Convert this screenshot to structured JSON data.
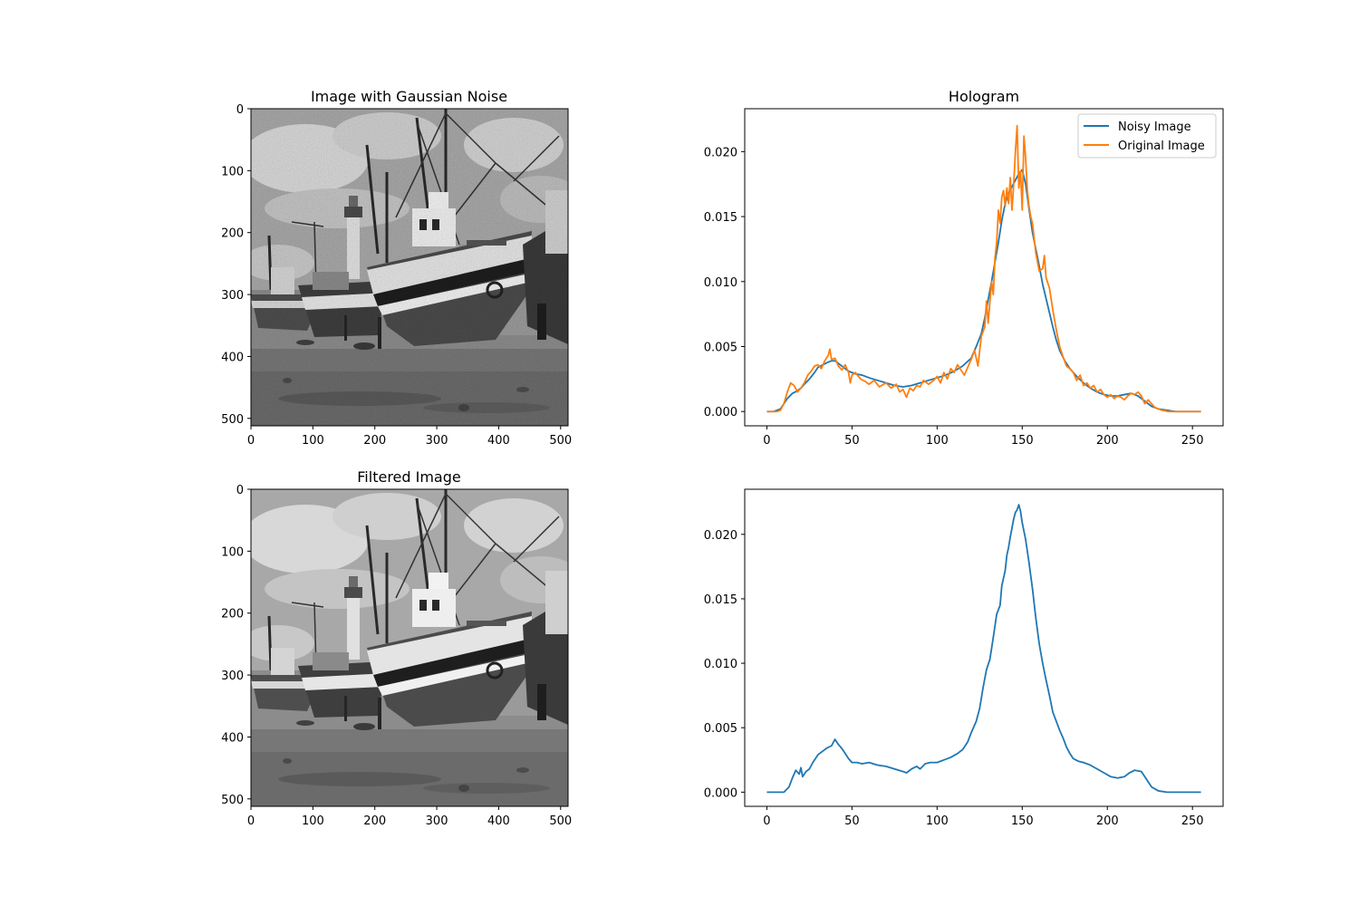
{
  "figure": {
    "panels": {
      "noisy_image": {
        "title": "Image with Gaussian Noise"
      },
      "filtered_image": {
        "title": "Filtered Image"
      },
      "hologram": {
        "title": "Hologram"
      }
    }
  },
  "chart_data": [
    {
      "type": "image",
      "title": "Image with Gaussian Noise",
      "content": "grayscale photograph of fishing boats beached at low tide (with added Gaussian noise)",
      "x_ticks": [
        0,
        100,
        200,
        300,
        400,
        500
      ],
      "y_ticks": [
        0,
        100,
        200,
        300,
        400,
        500
      ],
      "xlim": [
        0,
        512
      ],
      "ylim": [
        512,
        0
      ]
    },
    {
      "type": "line",
      "title": "Hologram",
      "xlim": [
        -13,
        268
      ],
      "ylim": [
        -0.0011,
        0.0233
      ],
      "x_ticks": [
        0,
        50,
        100,
        150,
        200,
        250
      ],
      "y_ticks": [
        "0.000",
        "0.005",
        "0.010",
        "0.015",
        "0.020"
      ],
      "legend": "upper-right",
      "series": [
        {
          "name": "Noisy Image",
          "color": "#1f77b4",
          "x": [
            0,
            4,
            8,
            10,
            12,
            15,
            18,
            20,
            22,
            25,
            28,
            30,
            33,
            36,
            38,
            40,
            42,
            45,
            48,
            52,
            56,
            60,
            65,
            70,
            75,
            80,
            85,
            90,
            95,
            100,
            105,
            110,
            115,
            120,
            123,
            126,
            128,
            130,
            132,
            134,
            136,
            138,
            140,
            142,
            144,
            146,
            148,
            150,
            152,
            154,
            156,
            158,
            160,
            162,
            164,
            166,
            168,
            170,
            172,
            175,
            178,
            182,
            186,
            190,
            194,
            198,
            202,
            206,
            210,
            214,
            218,
            222,
            226,
            230,
            235,
            240,
            245,
            250,
            255
          ],
          "y": [
            0.0,
            0.0,
            0.0002,
            0.0006,
            0.001,
            0.0014,
            0.0016,
            0.0018,
            0.0021,
            0.0025,
            0.003,
            0.0034,
            0.0036,
            0.0038,
            0.0039,
            0.0039,
            0.0037,
            0.0034,
            0.0031,
            0.0029,
            0.0028,
            0.0026,
            0.0024,
            0.0022,
            0.002,
            0.0019,
            0.002,
            0.0022,
            0.0024,
            0.0026,
            0.0028,
            0.0031,
            0.0035,
            0.0041,
            0.005,
            0.006,
            0.0072,
            0.0086,
            0.01,
            0.0115,
            0.013,
            0.0147,
            0.016,
            0.0168,
            0.0173,
            0.0178,
            0.0183,
            0.0186,
            0.0175,
            0.0156,
            0.0138,
            0.0125,
            0.0112,
            0.0098,
            0.0087,
            0.0076,
            0.0065,
            0.0055,
            0.0047,
            0.0039,
            0.0033,
            0.0027,
            0.0022,
            0.0018,
            0.0015,
            0.0013,
            0.0012,
            0.0012,
            0.0013,
            0.0014,
            0.0012,
            0.0008,
            0.0004,
            0.0002,
            0.0001,
            0.0,
            0.0,
            0.0,
            0.0
          ]
        },
        {
          "name": "Original Image",
          "color": "#ff7f0e",
          "x": [
            0,
            3,
            6,
            8,
            10,
            12,
            14,
            16,
            18,
            20,
            22,
            24,
            26,
            28,
            30,
            32,
            34,
            36,
            37,
            38,
            40,
            42,
            44,
            46,
            48,
            49,
            50,
            52,
            55,
            58,
            60,
            63,
            66,
            70,
            73,
            76,
            78,
            80,
            82,
            84,
            86,
            88,
            90,
            92,
            95,
            98,
            100,
            102,
            104,
            106,
            108,
            110,
            112,
            114,
            116,
            118,
            120,
            122,
            124,
            126,
            128,
            129,
            130,
            132,
            133,
            134,
            135,
            136,
            137,
            138,
            139,
            140,
            141,
            142,
            143,
            144,
            145,
            146,
            147,
            148,
            149,
            150,
            151,
            152,
            153,
            154,
            155,
            156,
            158,
            160,
            162,
            163,
            164,
            166,
            168,
            170,
            172,
            174,
            176,
            178,
            180,
            182,
            184,
            186,
            188,
            190,
            192,
            194,
            196,
            198,
            200,
            202,
            204,
            206,
            208,
            210,
            212,
            214,
            216,
            218,
            220,
            222,
            224,
            228,
            232,
            236,
            240,
            245,
            250,
            255
          ],
          "y": [
            0.0,
            0.0,
            0.0,
            0.0001,
            0.0006,
            0.0015,
            0.0022,
            0.002,
            0.0015,
            0.0018,
            0.0022,
            0.0028,
            0.0031,
            0.0035,
            0.0036,
            0.0033,
            0.0039,
            0.0043,
            0.0048,
            0.004,
            0.0041,
            0.0035,
            0.0032,
            0.0036,
            0.003,
            0.0022,
            0.0028,
            0.003,
            0.0025,
            0.0023,
            0.0021,
            0.0024,
            0.0019,
            0.0022,
            0.0018,
            0.0021,
            0.0015,
            0.0017,
            0.0011,
            0.0018,
            0.0016,
            0.002,
            0.0019,
            0.0024,
            0.0021,
            0.0024,
            0.0027,
            0.0022,
            0.003,
            0.0025,
            0.0033,
            0.003,
            0.0036,
            0.0032,
            0.0028,
            0.0034,
            0.004,
            0.0047,
            0.0035,
            0.0058,
            0.0065,
            0.0085,
            0.0068,
            0.01,
            0.009,
            0.0118,
            0.013,
            0.0155,
            0.0145,
            0.0165,
            0.017,
            0.0158,
            0.0172,
            0.016,
            0.018,
            0.0155,
            0.0175,
            0.02,
            0.022,
            0.0172,
            0.0185,
            0.0155,
            0.0212,
            0.0195,
            0.017,
            0.0158,
            0.015,
            0.0145,
            0.0122,
            0.0108,
            0.011,
            0.012,
            0.0103,
            0.0095,
            0.0078,
            0.0063,
            0.005,
            0.0042,
            0.0035,
            0.0033,
            0.003,
            0.0024,
            0.0028,
            0.002,
            0.0022,
            0.0018,
            0.002,
            0.0015,
            0.0017,
            0.0013,
            0.0011,
            0.0013,
            0.001,
            0.0012,
            0.0011,
            0.0009,
            0.0012,
            0.0014,
            0.0013,
            0.0015,
            0.0012,
            0.0006,
            0.0009,
            0.0003,
            0.0001,
            0.0,
            0.0,
            0.0,
            0.0,
            0.0
          ]
        }
      ]
    },
    {
      "type": "image",
      "title": "Filtered Image",
      "content": "grayscale photograph of fishing boats beached at low tide (denoised)",
      "x_ticks": [
        0,
        100,
        200,
        300,
        400,
        500
      ],
      "y_ticks": [
        0,
        100,
        200,
        300,
        400,
        500
      ],
      "xlim": [
        0,
        512
      ],
      "ylim": [
        512,
        0
      ]
    },
    {
      "type": "line",
      "title": "",
      "xlim": [
        -13,
        268
      ],
      "ylim": [
        -0.0011,
        0.0235
      ],
      "x_ticks": [
        0,
        50,
        100,
        150,
        200,
        250
      ],
      "y_ticks": [
        "0.000",
        "0.005",
        "0.010",
        "0.015",
        "0.020"
      ],
      "series": [
        {
          "name": "",
          "color": "#1f77b4",
          "x": [
            0,
            5,
            10,
            13,
            15,
            17,
            19,
            20,
            21,
            23,
            25,
            27,
            30,
            33,
            35,
            38,
            40,
            42,
            44,
            46,
            48,
            50,
            53,
            56,
            60,
            65,
            70,
            75,
            80,
            82,
            85,
            88,
            90,
            93,
            96,
            100,
            104,
            108,
            112,
            115,
            118,
            120,
            123,
            125,
            127,
            129,
            131,
            133,
            135,
            137,
            138,
            140,
            141,
            142,
            143,
            144,
            145,
            146,
            147,
            148,
            149,
            150,
            152,
            154,
            156,
            158,
            160,
            162,
            164,
            166,
            168,
            170,
            172,
            174,
            176,
            178,
            180,
            183,
            186,
            190,
            194,
            198,
            202,
            206,
            210,
            213,
            216,
            220,
            223,
            226,
            230,
            235,
            240,
            245,
            250,
            255
          ],
          "y": [
            0.0,
            0.0,
            0.0,
            0.0004,
            0.0011,
            0.0017,
            0.0014,
            0.0019,
            0.0012,
            0.0016,
            0.0018,
            0.0023,
            0.0029,
            0.0032,
            0.0034,
            0.0036,
            0.0041,
            0.0037,
            0.0034,
            0.003,
            0.0026,
            0.0023,
            0.0023,
            0.0022,
            0.0023,
            0.0021,
            0.002,
            0.0018,
            0.0016,
            0.0015,
            0.0018,
            0.002,
            0.0018,
            0.0022,
            0.0023,
            0.0023,
            0.0025,
            0.0027,
            0.003,
            0.0033,
            0.0039,
            0.0046,
            0.0055,
            0.0065,
            0.0081,
            0.0095,
            0.0103,
            0.012,
            0.0138,
            0.0145,
            0.016,
            0.0172,
            0.0184,
            0.019,
            0.0198,
            0.0205,
            0.0212,
            0.0217,
            0.0219,
            0.0223,
            0.0218,
            0.0209,
            0.0196,
            0.0178,
            0.0158,
            0.0135,
            0.0115,
            0.01,
            0.0087,
            0.0075,
            0.0062,
            0.0055,
            0.0048,
            0.0042,
            0.0035,
            0.003,
            0.0026,
            0.0024,
            0.0023,
            0.0021,
            0.0018,
            0.0015,
            0.0012,
            0.0011,
            0.0012,
            0.0015,
            0.0017,
            0.0016,
            0.001,
            0.0004,
            0.0001,
            0.0,
            0.0,
            0.0,
            0.0,
            0.0
          ]
        }
      ]
    }
  ]
}
